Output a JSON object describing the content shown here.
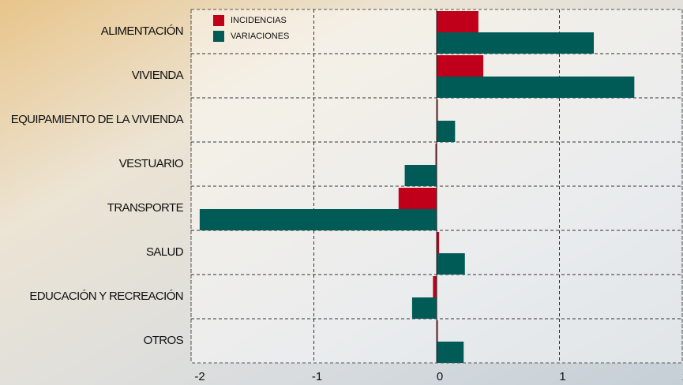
{
  "chart_data": {
    "type": "barh",
    "categories": [
      "ALIMENTACIÓN",
      "VIVIENDA",
      "EQUIPAMIENTO DE LA VIVIENDA",
      "VESTUARIO",
      "TRANSPORTE",
      "SALUD",
      "EDUCACIÓN Y RECREACIÓN",
      "OTROS"
    ],
    "series": [
      {
        "name": "INCIDENCIAS",
        "color": "#c0001a",
        "values": [
          0.34,
          0.38,
          0.01,
          -0.01,
          -0.31,
          0.02,
          -0.03,
          0.01
        ]
      },
      {
        "name": "VARIACIONES",
        "color": "#005a55",
        "values": [
          1.28,
          1.61,
          0.15,
          -0.26,
          -1.93,
          0.23,
          -0.2,
          0.22
        ]
      }
    ],
    "xlim": [
      -2,
      2
    ],
    "xticks": [
      -2,
      -1,
      0,
      1,
      2
    ],
    "grid": true,
    "legend": "upper-left"
  }
}
